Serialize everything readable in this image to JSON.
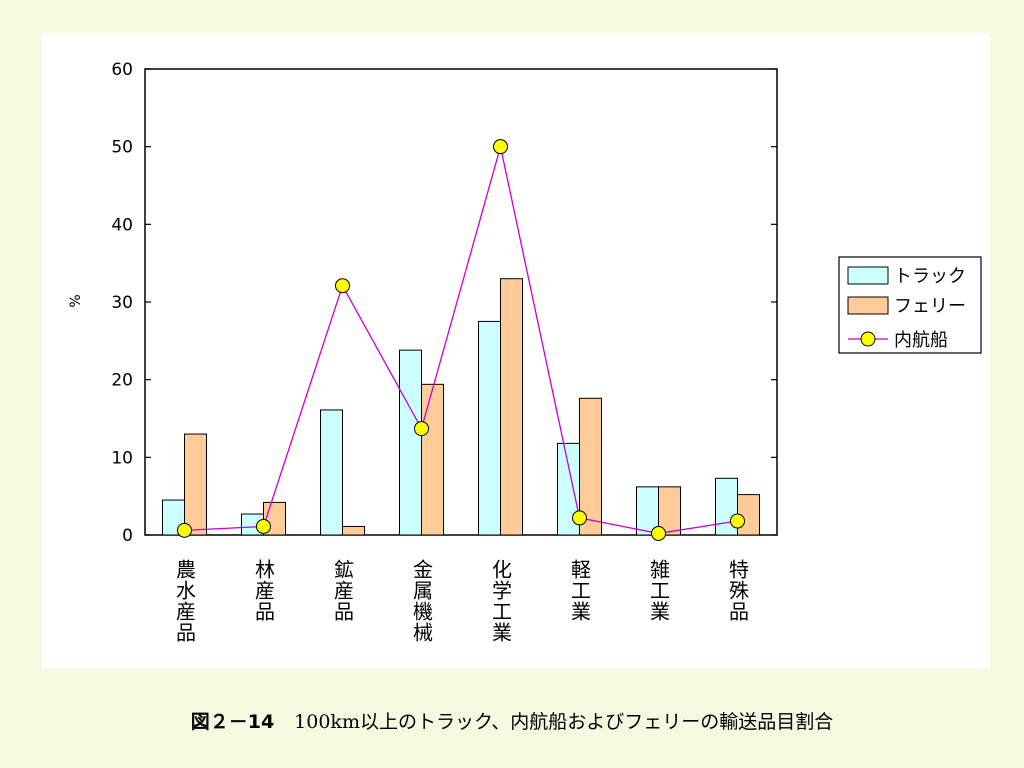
{
  "chart_data": {
    "type": "bar",
    "ylabel": "%",
    "ylim": [
      0,
      60
    ],
    "yticks": [
      0,
      10,
      20,
      30,
      40,
      50,
      60
    ],
    "categories": [
      "農水産品",
      "林産品",
      "鉱産品",
      "金属機械",
      "化学工業",
      "軽工業",
      "雑工業",
      "特殊品"
    ],
    "series": [
      {
        "name": "トラック",
        "kind": "bar",
        "color": "#ccffff",
        "values": [
          4.5,
          2.7,
          16.1,
          23.8,
          27.5,
          11.8,
          6.2,
          7.3
        ]
      },
      {
        "name": "フェリー",
        "kind": "bar",
        "color": "#ffcc99",
        "values": [
          13.0,
          4.2,
          1.1,
          19.4,
          33.0,
          17.6,
          6.2,
          5.2
        ]
      },
      {
        "name": "内航船",
        "kind": "line",
        "color": "#cc00cc",
        "marker_color": "#ffff00",
        "values": [
          0.6,
          1.1,
          32.1,
          13.7,
          50.0,
          2.2,
          0.2,
          1.8
        ]
      }
    ],
    "grid": false,
    "legend": "right"
  },
  "caption": {
    "figure_number": "図２－14",
    "text": "100km以上のトラック、内航船およびフェリーの輸送品目割合"
  }
}
